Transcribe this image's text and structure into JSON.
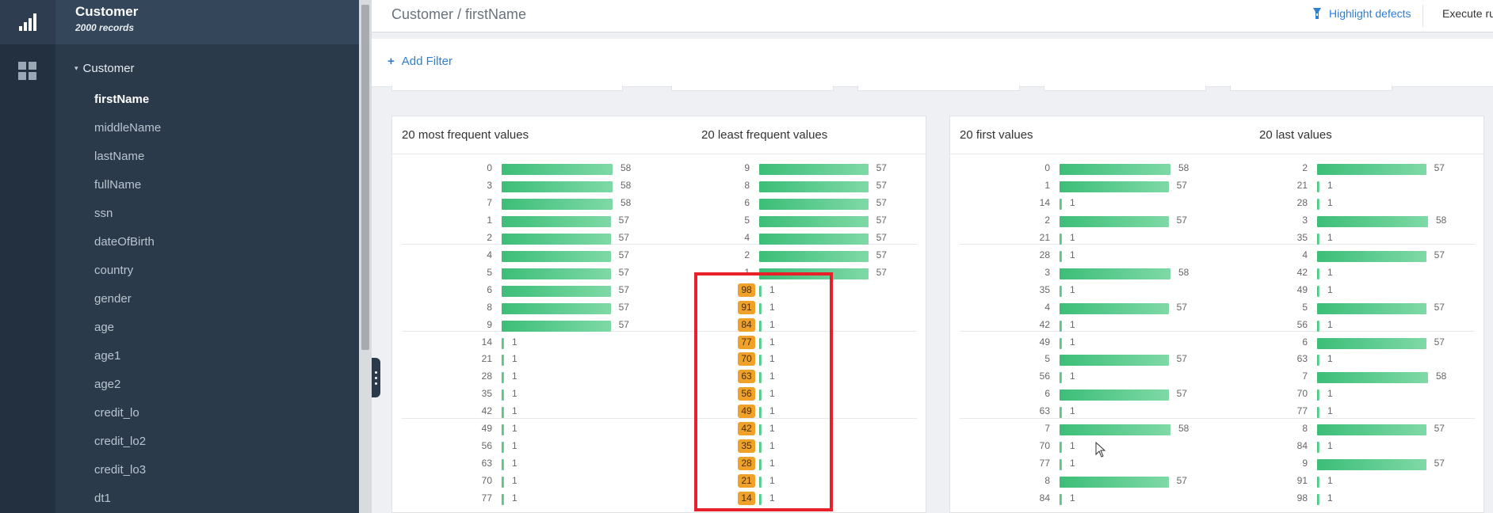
{
  "sidebar": {
    "title": "Customer",
    "subtitle": "2000 records",
    "root": "Customer",
    "items": [
      "firstName",
      "middleName",
      "lastName",
      "fullName",
      "ssn",
      "dateOfBirth",
      "country",
      "gender",
      "age",
      "age1",
      "age2",
      "credit_lo",
      "credit_lo2",
      "credit_lo3",
      "dt1"
    ],
    "active": "firstName"
  },
  "header": {
    "breadcrumb": "Customer / firstName",
    "highlight_label": "Highlight defects",
    "execute_label": "Execute rul"
  },
  "filter": {
    "add_label": "Add Filter"
  },
  "panels": {
    "most_frequent": {
      "title": "20 most frequent values",
      "rows": [
        [
          "0",
          "58"
        ],
        [
          "3",
          "58"
        ],
        [
          "7",
          "58"
        ],
        [
          "1",
          "57"
        ],
        [
          "2",
          "57"
        ],
        [
          "4",
          "57"
        ],
        [
          "5",
          "57"
        ],
        [
          "6",
          "57"
        ],
        [
          "8",
          "57"
        ],
        [
          "9",
          "57"
        ],
        [
          "14",
          "1"
        ],
        [
          "21",
          "1"
        ],
        [
          "28",
          "1"
        ],
        [
          "35",
          "1"
        ],
        [
          "42",
          "1"
        ],
        [
          "49",
          "1"
        ],
        [
          "56",
          "1"
        ],
        [
          "63",
          "1"
        ],
        [
          "70",
          "1"
        ],
        [
          "77",
          "1"
        ]
      ]
    },
    "least_frequent": {
      "title": "20 least frequent values",
      "rows": [
        [
          "9",
          "57"
        ],
        [
          "8",
          "57"
        ],
        [
          "6",
          "57"
        ],
        [
          "5",
          "57"
        ],
        [
          "4",
          "57"
        ],
        [
          "2",
          "57"
        ],
        [
          "1",
          "57"
        ],
        [
          "98",
          "1"
        ],
        [
          "91",
          "1"
        ],
        [
          "84",
          "1"
        ],
        [
          "77",
          "1"
        ],
        [
          "70",
          "1"
        ],
        [
          "63",
          "1"
        ],
        [
          "56",
          "1"
        ],
        [
          "49",
          "1"
        ],
        [
          "42",
          "1"
        ],
        [
          "35",
          "1"
        ],
        [
          "28",
          "1"
        ],
        [
          "21",
          "1"
        ],
        [
          "14",
          "1"
        ]
      ]
    },
    "first_values": {
      "title": "20 first values",
      "rows": [
        [
          "0",
          "58"
        ],
        [
          "1",
          "57"
        ],
        [
          "14",
          "1"
        ],
        [
          "2",
          "57"
        ],
        [
          "21",
          "1"
        ],
        [
          "28",
          "1"
        ],
        [
          "3",
          "58"
        ],
        [
          "35",
          "1"
        ],
        [
          "4",
          "57"
        ],
        [
          "42",
          "1"
        ],
        [
          "49",
          "1"
        ],
        [
          "5",
          "57"
        ],
        [
          "56",
          "1"
        ],
        [
          "6",
          "57"
        ],
        [
          "63",
          "1"
        ],
        [
          "7",
          "58"
        ],
        [
          "70",
          "1"
        ],
        [
          "77",
          "1"
        ],
        [
          "8",
          "57"
        ],
        [
          "84",
          "1"
        ]
      ]
    },
    "last_values": {
      "title": "20 last values",
      "rows": [
        [
          "2",
          "57"
        ],
        [
          "21",
          "1"
        ],
        [
          "28",
          "1"
        ],
        [
          "3",
          "58"
        ],
        [
          "35",
          "1"
        ],
        [
          "4",
          "57"
        ],
        [
          "42",
          "1"
        ],
        [
          "49",
          "1"
        ],
        [
          "5",
          "57"
        ],
        [
          "56",
          "1"
        ],
        [
          "6",
          "57"
        ],
        [
          "63",
          "1"
        ],
        [
          "7",
          "58"
        ],
        [
          "70",
          "1"
        ],
        [
          "77",
          "1"
        ],
        [
          "8",
          "57"
        ],
        [
          "84",
          "1"
        ],
        [
          "9",
          "57"
        ],
        [
          "91",
          "1"
        ],
        [
          "98",
          "1"
        ]
      ]
    }
  },
  "colors": {
    "bar": "#3cbe78",
    "badge": "#f0a12a",
    "highlight": "#e8202a",
    "link": "#2f7fd1"
  }
}
